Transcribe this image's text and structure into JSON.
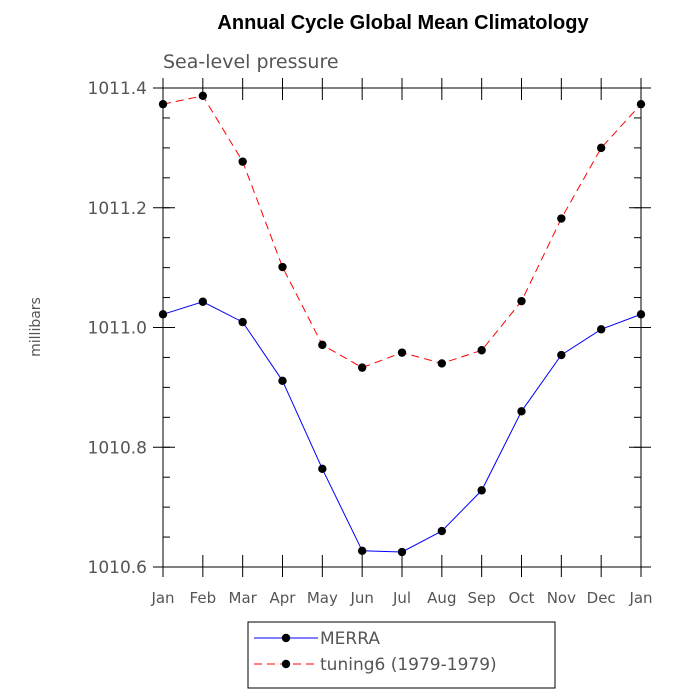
{
  "chart_data": {
    "type": "line",
    "title": "Annual Cycle Global Mean Climatology",
    "subtitle": "Sea-level pressure",
    "xlabel": "",
    "ylabel": "millibars",
    "categories": [
      "Jan",
      "Feb",
      "Mar",
      "Apr",
      "May",
      "Jun",
      "Jul",
      "Aug",
      "Sep",
      "Oct",
      "Nov",
      "Dec",
      "Jan"
    ],
    "ylim": [
      1010.6,
      1011.4
    ],
    "yticks": [
      1010.6,
      1010.8,
      1011.0,
      1011.2,
      1011.4
    ],
    "ytick_labels": [
      "1010.6",
      "1010.8",
      "1011.0",
      "1011.2",
      "1011.4"
    ],
    "minor_ytick_step": 0.05,
    "grid": false,
    "legend_position": "bottom-center",
    "series": [
      {
        "name": "MERRA",
        "color": "#0000ff",
        "dash": "solid",
        "marker": "filled-circle",
        "values": [
          1011.022,
          1011.043,
          1011.009,
          1010.911,
          1010.764,
          1010.627,
          1010.625,
          1010.66,
          1010.728,
          1010.86,
          1010.954,
          1010.997,
          1011.022
        ]
      },
      {
        "name": "tuning6 (1979-1979)",
        "color": "#ff0000",
        "dash": "dashed",
        "marker": "filled-circle",
        "values": [
          1011.373,
          1011.387,
          1011.277,
          1011.101,
          1010.971,
          1010.933,
          1010.958,
          1010.94,
          1010.962,
          1011.044,
          1011.182,
          1011.3,
          1011.373
        ]
      }
    ]
  }
}
